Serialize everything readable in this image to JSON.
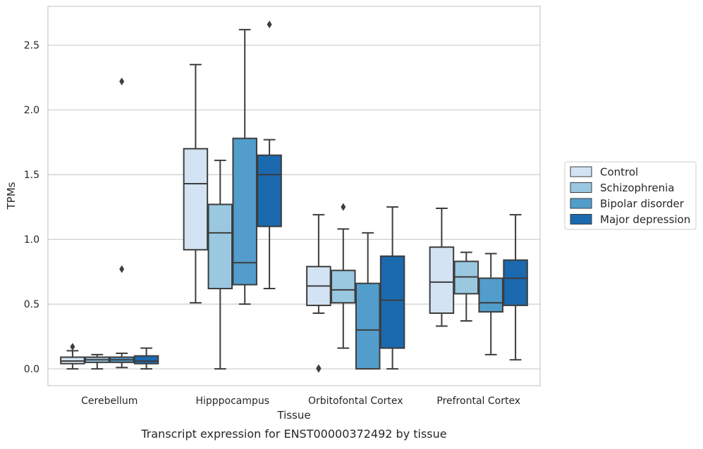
{
  "chart_data": {
    "type": "box",
    "title": "",
    "caption": "Transcript expression for ENST00000372492 by tissue",
    "xlabel": "Tissue",
    "ylabel": "TPMs",
    "ylim": [
      -0.13,
      2.8
    ],
    "yticks": [
      0.0,
      0.5,
      1.0,
      1.5,
      2.0,
      2.5
    ],
    "ytick_labels": [
      "0.0",
      "0.5",
      "1.0",
      "1.5",
      "2.0",
      "2.5"
    ],
    "grid": "horizontal",
    "legend_position": "right",
    "categories": [
      "Cerebellum",
      "Hipppocampus",
      "Orbitofontal Cortex",
      "Prefrontal Cortex"
    ],
    "series": [
      {
        "name": "Control",
        "color": "#d3e3f3",
        "boxes": [
          {
            "whislo": 0.0,
            "q1": 0.04,
            "med": 0.06,
            "q3": 0.09,
            "whishi": 0.14,
            "fliers": [
              0.17
            ]
          },
          {
            "whislo": 0.51,
            "q1": 0.92,
            "med": 1.43,
            "q3": 1.7,
            "whishi": 2.35,
            "fliers": []
          },
          {
            "whislo": 0.43,
            "q1": 0.49,
            "med": 0.64,
            "q3": 0.79,
            "whishi": 1.19,
            "fliers": [
              0.0,
              0.005
            ]
          },
          {
            "whislo": 0.33,
            "q1": 0.43,
            "med": 0.67,
            "q3": 0.94,
            "whishi": 1.24,
            "fliers": []
          }
        ]
      },
      {
        "name": "Schizophrenia",
        "color": "#9ac8e0",
        "boxes": [
          {
            "whislo": 0.0,
            "q1": 0.05,
            "med": 0.07,
            "q3": 0.09,
            "whishi": 0.11,
            "fliers": []
          },
          {
            "whislo": 0.0,
            "q1": 0.62,
            "med": 1.05,
            "q3": 1.27,
            "whishi": 1.61,
            "fliers": []
          },
          {
            "whislo": 0.16,
            "q1": 0.51,
            "med": 0.61,
            "q3": 0.76,
            "whishi": 1.08,
            "fliers": [
              1.25
            ]
          },
          {
            "whislo": 0.37,
            "q1": 0.58,
            "med": 0.71,
            "q3": 0.83,
            "whishi": 0.9,
            "fliers": []
          }
        ]
      },
      {
        "name": "Bipolar disorder",
        "color": "#529dcc",
        "boxes": [
          {
            "whislo": 0.01,
            "q1": 0.05,
            "med": 0.07,
            "q3": 0.09,
            "whishi": 0.12,
            "fliers": [
              0.77,
              2.22
            ]
          },
          {
            "whislo": 0.5,
            "q1": 0.65,
            "med": 0.82,
            "q3": 1.78,
            "whishi": 2.62,
            "fliers": []
          },
          {
            "whislo": 0.0,
            "q1": 0.0,
            "med": 0.3,
            "q3": 0.66,
            "whishi": 1.05,
            "fliers": []
          },
          {
            "whislo": 0.11,
            "q1": 0.44,
            "med": 0.51,
            "q3": 0.7,
            "whishi": 0.89,
            "fliers": []
          }
        ]
      },
      {
        "name": "Major depression",
        "color": "#1b69af",
        "boxes": [
          {
            "whislo": 0.0,
            "q1": 0.04,
            "med": 0.06,
            "q3": 0.1,
            "whishi": 0.16,
            "fliers": []
          },
          {
            "whislo": 0.62,
            "q1": 1.1,
            "med": 1.5,
            "q3": 1.65,
            "whishi": 1.77,
            "fliers": [
              2.66
            ]
          },
          {
            "whislo": 0.0,
            "q1": 0.16,
            "med": 0.53,
            "q3": 0.87,
            "whishi": 1.25,
            "fliers": []
          },
          {
            "whislo": 0.07,
            "q1": 0.49,
            "med": 0.7,
            "q3": 0.84,
            "whishi": 1.19,
            "fliers": []
          }
        ]
      }
    ],
    "line_color": "#3d3d3d",
    "grid_color": "#cccccc",
    "frame_color": "#cccccc"
  }
}
